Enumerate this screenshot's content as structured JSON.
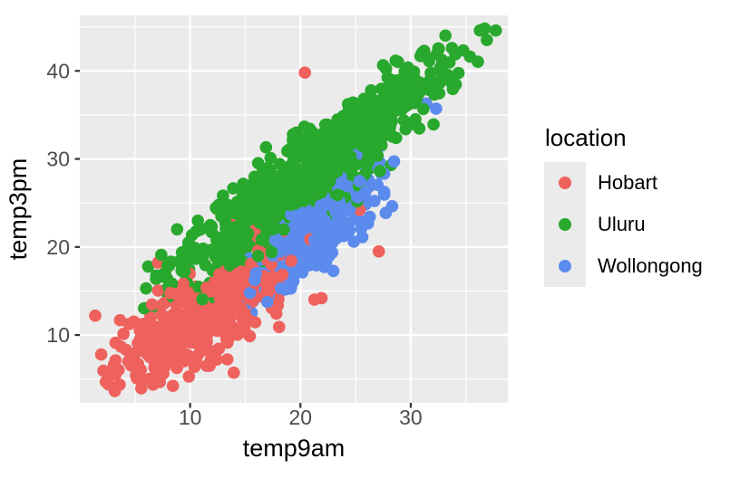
{
  "theme": {
    "panel_bg": "#EBEBEB",
    "grid_color": "#FFFFFF",
    "tick_color": "#333333",
    "tick_label_color": "#4D4D4D",
    "axis_title_color": "#000000",
    "legend_key_bg": "#EBEBEB"
  },
  "legend": {
    "title": "location",
    "items": [
      {
        "label": "Hobart",
        "color": "#EE615D"
      },
      {
        "label": "Uluru",
        "color": "#28A82C"
      },
      {
        "label": "Wollongong",
        "color": "#5C8BEE"
      }
    ]
  },
  "chart_data": {
    "type": "scatter",
    "xlabel": "temp9am",
    "ylabel": "temp3pm",
    "legend_title": "location",
    "x_domain": [
      0,
      38.8
    ],
    "y_domain": [
      2.3,
      46.3
    ],
    "x_breaks": [
      10,
      20,
      30
    ],
    "x_minor_breaks": [
      5,
      15,
      25,
      35
    ],
    "y_breaks": [
      10,
      20,
      30,
      40
    ],
    "y_minor_breaks": [
      5,
      15,
      25,
      35,
      45
    ],
    "x_tick_labels": [
      "10",
      "20",
      "30"
    ],
    "y_tick_labels": [
      "10",
      "20",
      "30",
      "40"
    ],
    "grid": true,
    "legend_position": "right",
    "point_radius_px": 6.8,
    "series": [
      {
        "name": "Hobart",
        "color": "#EE615D",
        "n": 430,
        "mean": [
          11.2,
          12.2
        ],
        "sd": [
          4.7,
          4.4
        ],
        "corr": 0.8,
        "x_range": [
          0.6,
          27.5
        ],
        "y_range": [
          3.5,
          32.0
        ],
        "outliers": [
          [
            20.4,
            39.8
          ],
          [
            27.1,
            19.5
          ],
          [
            2.6,
            4.4
          ],
          [
            6.3,
            5.0
          ],
          [
            11.5,
            6.5
          ],
          [
            1.4,
            12.2
          ]
        ]
      },
      {
        "name": "Uluru",
        "color": "#28A82C",
        "n": 900,
        "mean": [
          20.8,
          28.3
        ],
        "sd": [
          6.0,
          6.2
        ],
        "corr": 0.93,
        "x_range": [
          5.8,
          37.8
        ],
        "y_range": [
          12.8,
          45.5
        ],
        "outliers": [
          [
            36.7,
            44.8
          ],
          [
            36.9,
            43.5
          ],
          [
            6.6,
            13.2
          ]
        ]
      },
      {
        "name": "Wollongong",
        "color": "#5C8BEE",
        "n": 260,
        "mean": [
          21.3,
          21.3
        ],
        "sd": [
          2.6,
          3.4
        ],
        "corr": 0.72,
        "x_range": [
          13.0,
          29.0
        ],
        "y_range": [
          12.5,
          31.5
        ],
        "outliers": [
          [
            31.4,
            36.3
          ],
          [
            32.3,
            35.7
          ],
          [
            27.2,
            29.6
          ]
        ]
      }
    ]
  }
}
